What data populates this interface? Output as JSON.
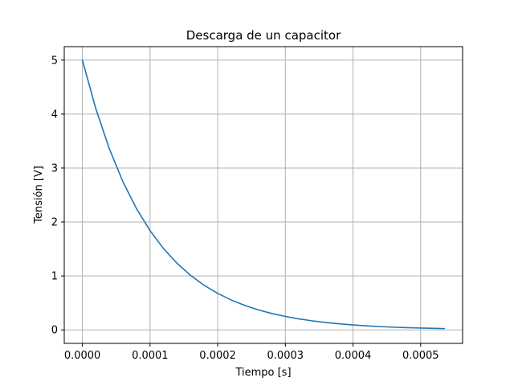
{
  "chart_data": {
    "type": "line",
    "title": "Descarga de un capacitor",
    "xlabel": "Tiempo [s]",
    "ylabel": "Tensión [V]",
    "xlim": [
      -2.68e-05,
      0.000562
    ],
    "ylim": [
      -0.25,
      5.25
    ],
    "grid": true,
    "legend": "none",
    "x_ticks": [
      0,
      0.0001,
      0.0002,
      0.0003,
      0.0004,
      0.0005
    ],
    "x_tick_labels": [
      "0.0000",
      "0.0001",
      "0.0002",
      "0.0003",
      "0.0004",
      "0.0005"
    ],
    "y_ticks": [
      0,
      1,
      2,
      3,
      4,
      5
    ],
    "y_tick_labels": [
      "0",
      "1",
      "2",
      "3",
      "4",
      "5"
    ],
    "colors": {
      "line": "#1f77b4",
      "grid": "#b0b0b0",
      "axes": "#000000"
    },
    "series": [
      {
        "x": [
          0,
          2e-05,
          4e-05,
          6e-05,
          8e-05,
          0.0001,
          0.00012,
          0.00014,
          0.00016,
          0.00018,
          0.0002,
          0.00022,
          0.00024,
          0.00026,
          0.00028,
          0.0003,
          0.00032,
          0.00034,
          0.00036,
          0.00038,
          0.0004,
          0.00042,
          0.00044,
          0.00046,
          0.00048,
          0.0005,
          0.00052,
          0.000535
        ],
        "values": [
          5.0,
          4.094,
          3.352,
          2.744,
          2.247,
          1.839,
          1.506,
          1.233,
          1.009,
          0.826,
          0.677,
          0.554,
          0.454,
          0.371,
          0.304,
          0.249,
          0.204,
          0.167,
          0.137,
          0.112,
          0.092,
          0.075,
          0.061,
          0.05,
          0.041,
          0.034,
          0.028,
          0.024
        ]
      }
    ]
  }
}
